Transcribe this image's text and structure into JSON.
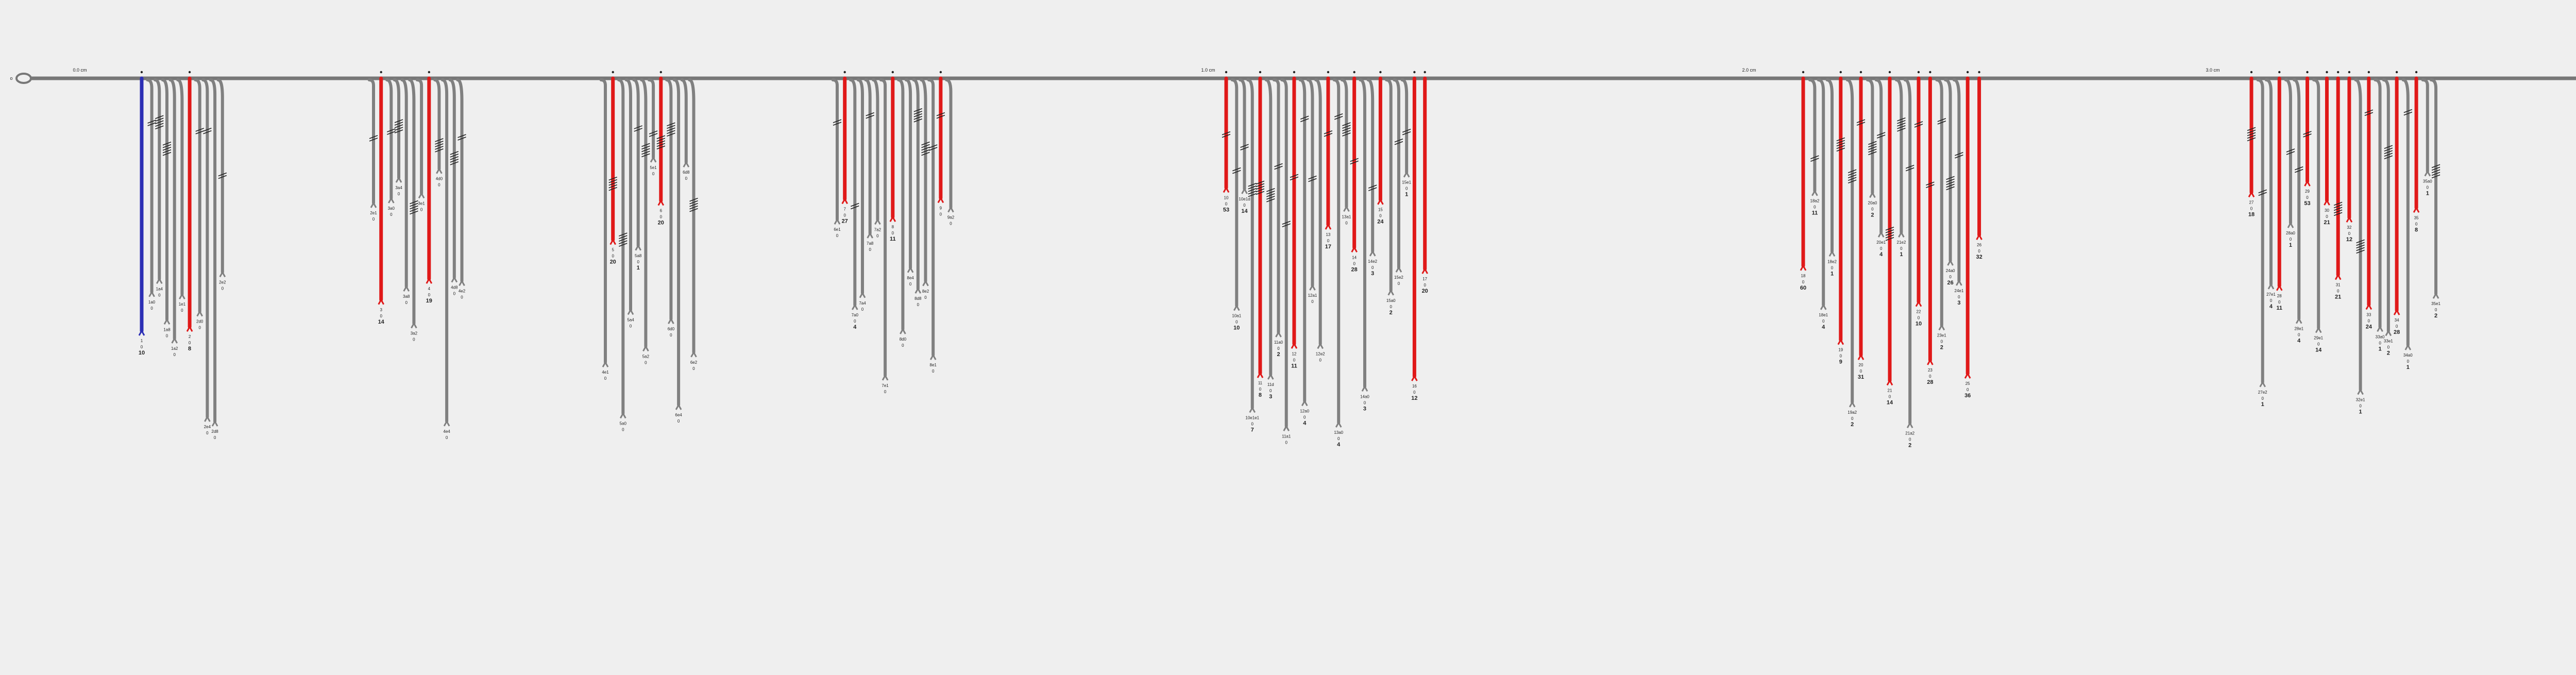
{
  "chart_data": {
    "type": "diagram",
    "scale_ticks": [
      "0.0 cm",
      "1.0 cm",
      "2.0 cm",
      "3.0 cm"
    ],
    "start_marker": "o",
    "end_marker": "o",
    "colors": {
      "main": "#808080",
      "highlight": "#e01919",
      "blue": "#2c2fb5",
      "line": "#777777"
    },
    "groups": [
      {
        "branches": [
          {
            "kind": "blue",
            "lines": [
              "1",
              "0",
              "10"
            ],
            "bold": 2
          },
          {
            "kind": "gray",
            "lines": [
              "1a0",
              "0"
            ]
          },
          {
            "kind": "gray",
            "lines": [
              "1a4",
              "0"
            ]
          },
          {
            "kind": "gray",
            "lines": [
              "1a8",
              "0"
            ]
          },
          {
            "kind": "gray",
            "lines": [
              "1a2",
              "0"
            ]
          },
          {
            "kind": "gray",
            "lines": [
              "1e1",
              "0"
            ]
          },
          {
            "kind": "red",
            "lines": [
              "2",
              "0",
              "8"
            ],
            "bold": 2
          },
          {
            "kind": "gray",
            "lines": [
              "2d0",
              "0"
            ]
          },
          {
            "kind": "gray",
            "lines": [
              "2e4",
              "0"
            ]
          },
          {
            "kind": "gray",
            "lines": [
              "2d8",
              "0"
            ]
          },
          {
            "kind": "gray",
            "lines": [
              "2e2",
              "0"
            ]
          }
        ]
      },
      {
        "branches": [
          {
            "kind": "gray",
            "lines": [
              "2e1",
              "0"
            ]
          },
          {
            "kind": "red",
            "lines": [
              "3",
              "0",
              "14"
            ],
            "bold": 2
          },
          {
            "kind": "gray",
            "lines": [
              "3a0",
              "0"
            ]
          },
          {
            "kind": "gray",
            "lines": [
              "3a4",
              "0"
            ]
          },
          {
            "kind": "gray",
            "lines": [
              "3a8",
              "0"
            ]
          },
          {
            "kind": "gray",
            "lines": [
              "3a2",
              "0"
            ]
          },
          {
            "kind": "gray",
            "lines": [
              "3e1",
              "0"
            ]
          },
          {
            "kind": "red",
            "lines": [
              "4",
              "0",
              "19"
            ],
            "bold": 2
          },
          {
            "kind": "gray",
            "lines": [
              "4d0",
              "0"
            ]
          },
          {
            "kind": "gray",
            "lines": [
              "4e4",
              "0"
            ]
          },
          {
            "kind": "gray",
            "lines": [
              "4d8",
              "0"
            ]
          },
          {
            "kind": "gray",
            "lines": [
              "4e2",
              "0"
            ]
          }
        ]
      },
      {
        "branches": [
          {
            "kind": "gray",
            "lines": [
              "4e1",
              "0"
            ]
          },
          {
            "kind": "red",
            "lines": [
              "5",
              "0",
              "20"
            ],
            "bold": 2
          },
          {
            "kind": "gray",
            "lines": [
              "5a0",
              "0"
            ]
          },
          {
            "kind": "gray",
            "lines": [
              "5a4",
              "0"
            ]
          },
          {
            "kind": "gray",
            "lines": [
              "5a8",
              "0",
              "1"
            ],
            "bold": 2
          },
          {
            "kind": "gray",
            "lines": [
              "5a2",
              "0"
            ]
          },
          {
            "kind": "gray",
            "lines": [
              "5e1",
              "0"
            ]
          },
          {
            "kind": "red",
            "lines": [
              "6",
              "0",
              "20"
            ],
            "bold": 2
          },
          {
            "kind": "gray",
            "lines": [
              "6d0",
              "0"
            ]
          },
          {
            "kind": "gray",
            "lines": [
              "6e4",
              "0"
            ]
          },
          {
            "kind": "gray",
            "lines": [
              "6d8",
              "0"
            ]
          },
          {
            "kind": "gray",
            "lines": [
              "6e2",
              "0"
            ]
          }
        ]
      },
      {
        "branches": [
          {
            "kind": "gray",
            "lines": [
              "6e1",
              "0"
            ]
          },
          {
            "kind": "red",
            "lines": [
              "7",
              "0",
              "27"
            ],
            "bold": 2
          },
          {
            "kind": "gray",
            "lines": [
              "7a0",
              "0",
              "4"
            ],
            "bold": 2
          },
          {
            "kind": "gray",
            "lines": [
              "7a4",
              "0"
            ]
          },
          {
            "kind": "gray",
            "lines": [
              "7a8",
              "0"
            ]
          },
          {
            "kind": "gray",
            "lines": [
              "7a2",
              "0"
            ]
          },
          {
            "kind": "gray",
            "lines": [
              "7e1",
              "0"
            ]
          },
          {
            "kind": "red",
            "lines": [
              "8",
              "0",
              "11"
            ],
            "bold": 2
          },
          {
            "kind": "gray",
            "lines": [
              "8d0",
              "0"
            ]
          },
          {
            "kind": "gray",
            "lines": [
              "8e4",
              "0"
            ]
          },
          {
            "kind": "gray",
            "lines": [
              "8d8",
              "0"
            ]
          },
          {
            "kind": "gray",
            "lines": [
              "8e2",
              "0"
            ]
          },
          {
            "kind": "gray",
            "lines": [
              "8e1",
              "0"
            ]
          },
          {
            "kind": "red",
            "lines": [
              "9",
              "0"
            ]
          },
          {
            "kind": "gray",
            "lines": [
              "9a2",
              "0"
            ]
          }
        ]
      },
      {
        "branches": [
          {
            "kind": "red",
            "lines": [
              "10",
              "0",
              "53"
            ],
            "bold": 2
          },
          {
            "kind": "gray",
            "lines": [
              "10a1",
              "0",
              "10"
            ],
            "bold": 2
          },
          {
            "kind": "gray",
            "lines": [
              "10e1d",
              "0",
              "14"
            ],
            "bold": 2
          },
          {
            "kind": "gray",
            "lines": [
              "10e1e1",
              "0",
              "7"
            ],
            "bold": 2
          },
          {
            "kind": "red",
            "lines": [
              "11",
              "0",
              "8"
            ],
            "bold": 2
          },
          {
            "kind": "gray",
            "lines": [
              "11d",
              "0",
              "3"
            ],
            "bold": 2
          },
          {
            "kind": "gray",
            "lines": [
              "11a0",
              "0",
              "2"
            ],
            "bold": 2
          },
          {
            "kind": "gray",
            "lines": [
              "11a1",
              "0"
            ]
          },
          {
            "kind": "red",
            "lines": [
              "12",
              "0",
              "11"
            ],
            "bold": 2
          },
          {
            "kind": "gray",
            "lines": [
              "12a0",
              "0",
              "4"
            ],
            "bold": 2
          },
          {
            "kind": "gray",
            "lines": [
              "12a1",
              "0"
            ]
          },
          {
            "kind": "gray",
            "lines": [
              "12e2",
              "0"
            ]
          },
          {
            "kind": "red",
            "lines": [
              "13",
              "0",
              "17"
            ],
            "bold": 2
          },
          {
            "kind": "gray",
            "lines": [
              "13a0",
              "0",
              "4"
            ],
            "bold": 2
          },
          {
            "kind": "gray",
            "lines": [
              "13a1",
              "0"
            ]
          },
          {
            "kind": "red",
            "lines": [
              "14",
              "0",
              "28"
            ],
            "bold": 2
          },
          {
            "kind": "gray",
            "lines": [
              "14a0",
              "0",
              "3"
            ],
            "bold": 2
          },
          {
            "kind": "gray",
            "lines": [
              "14e2",
              "0",
              "3"
            ],
            "bold": 2
          },
          {
            "kind": "red",
            "lines": [
              "15",
              "0",
              "24"
            ],
            "bold": 2
          },
          {
            "kind": "gray",
            "lines": [
              "15a0",
              "0",
              "2"
            ],
            "bold": 2
          },
          {
            "kind": "gray",
            "lines": [
              "15e2",
              "0"
            ]
          },
          {
            "kind": "gray",
            "lines": [
              "15e1",
              "0",
              "1"
            ],
            "bold": 2
          },
          {
            "kind": "red",
            "lines": [
              "16",
              "0",
              "12"
            ],
            "bold": 2
          },
          {
            "kind": "red",
            "lines": [
              "17",
              "0",
              "20"
            ],
            "bold": 2
          }
        ]
      },
      {
        "branches": [
          {
            "kind": "red",
            "lines": [
              "18",
              "0",
              "60"
            ],
            "bold": 2
          },
          {
            "kind": "gray",
            "lines": [
              "18a2",
              "0",
              "11"
            ],
            "bold": 2
          },
          {
            "kind": "gray",
            "lines": [
              "18e1",
              "0",
              "4"
            ],
            "bold": 2
          },
          {
            "kind": "gray",
            "lines": [
              "18e2",
              "0",
              "1"
            ],
            "bold": 2
          },
          {
            "kind": "red",
            "lines": [
              "19",
              "0",
              "9"
            ],
            "bold": 2
          },
          {
            "kind": "gray",
            "lines": [
              "19a2",
              "0",
              "2"
            ],
            "bold": 2
          },
          {
            "kind": "red",
            "lines": [
              "20",
              "0",
              "31"
            ],
            "bold": 2
          },
          {
            "kind": "gray",
            "lines": [
              "20a0",
              "0",
              "2"
            ],
            "bold": 2
          },
          {
            "kind": "gray",
            "lines": [
              "20e1",
              "0",
              "4"
            ],
            "bold": 2
          },
          {
            "kind": "red",
            "lines": [
              "21",
              "0",
              "14"
            ],
            "bold": 2
          },
          {
            "kind": "gray",
            "lines": [
              "21e2",
              "0",
              "1"
            ],
            "bold": 2
          },
          {
            "kind": "gray",
            "lines": [
              "21a2",
              "0",
              "2"
            ],
            "bold": 2
          },
          {
            "kind": "red",
            "lines": [
              "22",
              "0",
              "10"
            ],
            "bold": 2
          },
          {
            "kind": "red",
            "lines": [
              "23",
              "0",
              "28"
            ],
            "bold": 2
          },
          {
            "kind": "gray",
            "lines": [
              "23e1",
              "0",
              "2"
            ],
            "bold": 2
          },
          {
            "kind": "gray",
            "lines": [
              "24a0",
              "0",
              "26"
            ],
            "bold": 2
          },
          {
            "kind": "gray",
            "lines": [
              "24e1",
              "0",
              "3"
            ],
            "bold": 2
          },
          {
            "kind": "red",
            "lines": [
              "25",
              "0",
              "36"
            ],
            "bold": 2
          },
          {
            "kind": "red",
            "lines": [
              "26",
              "0",
              "32"
            ],
            "bold": 2
          }
        ]
      },
      {
        "branches": [
          {
            "kind": "red",
            "lines": [
              "27",
              "0",
              "18"
            ],
            "bold": 2
          },
          {
            "kind": "gray",
            "lines": [
              "27e2",
              "0",
              "1"
            ],
            "bold": 2
          },
          {
            "kind": "gray",
            "lines": [
              "27e1",
              "0",
              "4"
            ],
            "bold": 2
          },
          {
            "kind": "red",
            "lines": [
              "28",
              "0",
              "11"
            ],
            "bold": 2
          },
          {
            "kind": "gray",
            "lines": [
              "28a0",
              "0",
              "1"
            ],
            "bold": 2
          },
          {
            "kind": "gray",
            "lines": [
              "28e1",
              "0",
              "4"
            ],
            "bold": 2
          },
          {
            "kind": "red",
            "lines": [
              "29",
              "0",
              "53"
            ],
            "bold": 2
          },
          {
            "kind": "gray",
            "lines": [
              "29e1",
              "0",
              "14"
            ],
            "bold": 2
          },
          {
            "kind": "red",
            "lines": [
              "30",
              "0",
              "21"
            ],
            "bold": 2
          },
          {
            "kind": "red",
            "lines": [
              "31",
              "0",
              "21"
            ],
            "bold": 2
          },
          {
            "kind": "red",
            "lines": [
              "32",
              "0",
              "12"
            ],
            "bold": 2
          },
          {
            "kind": "gray",
            "lines": [
              "32e1",
              "0",
              "1"
            ],
            "bold": 2
          },
          {
            "kind": "red",
            "lines": [
              "33",
              "0",
              "24"
            ],
            "bold": 2
          },
          {
            "kind": "gray",
            "lines": [
              "33a0",
              "0",
              "1"
            ],
            "bold": 2
          },
          {
            "kind": "gray",
            "lines": [
              "33e1",
              "0",
              "2"
            ],
            "bold": 2
          },
          {
            "kind": "red",
            "lines": [
              "34",
              "0",
              "28"
            ],
            "bold": 2
          },
          {
            "kind": "gray",
            "lines": [
              "34a0",
              "0",
              "1"
            ],
            "bold": 2
          },
          {
            "kind": "red",
            "lines": [
              "35",
              "0",
              "8"
            ],
            "bold": 2
          },
          {
            "kind": "gray",
            "lines": [
              "35a0",
              "0",
              "1"
            ],
            "bold": 2
          },
          {
            "kind": "gray",
            "lines": [
              "35e1",
              "0",
              "2"
            ],
            "bold": 2
          }
        ]
      }
    ]
  }
}
